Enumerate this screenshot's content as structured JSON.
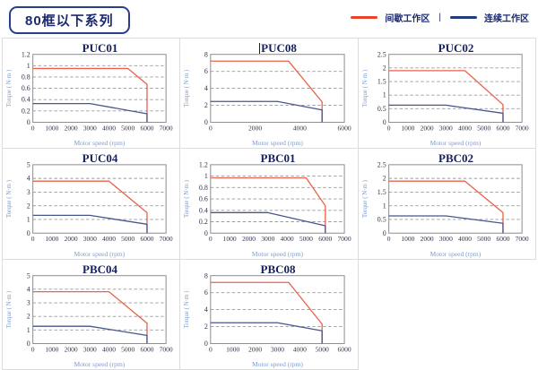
{
  "header": {
    "series_title": "80框以下系列",
    "legend": {
      "intermittent_label": "间歇工作区",
      "continuous_label": "连续工作区",
      "separator": "|",
      "intermittent_color": "#e8432a",
      "continuous_color": "#1f3d7d"
    }
  },
  "colors": {
    "chart_red": "#e9604b",
    "chart_blue": "#47568e",
    "grid": "#9a9a9a",
    "frame": "#8c8c8c",
    "title_text": "#16205c",
    "tick_text": "#33334d",
    "axis_label": "#7b9cd0",
    "cell_border": "#dcdcdc"
  },
  "chart_data": [
    {
      "type": "line",
      "title": "PUC01",
      "xlabel": "Motor speed (rpm)",
      "ylabel": "Torque ( N·m )",
      "xlim": [
        0,
        7000
      ],
      "ylim": [
        0,
        1.2
      ],
      "xticks": [
        0,
        1000,
        2000,
        3000,
        4000,
        5000,
        6000,
        7000
      ],
      "yticks": [
        0,
        0.2,
        0.4,
        0.6,
        0.8,
        1,
        1.2
      ],
      "grid": "horizontal-dashed",
      "legend_position": "none",
      "series": [
        {
          "name": "间歇工作区",
          "color": "#e9604b",
          "points": [
            [
              0,
              0.95
            ],
            [
              5000,
              0.95
            ],
            [
              6000,
              0.67
            ],
            [
              6000,
              0
            ]
          ]
        },
        {
          "name": "连续工作区",
          "color": "#47568e",
          "points": [
            [
              0,
              0.33
            ],
            [
              3000,
              0.33
            ],
            [
              6000,
              0.15
            ],
            [
              6000,
              0
            ]
          ]
        }
      ]
    },
    {
      "type": "line",
      "title": "PUC08",
      "xlabel": "Motor speed (rpm)",
      "ylabel": "Torque ( N·m )",
      "xlim": [
        0,
        6000
      ],
      "ylim": [
        0,
        8
      ],
      "xticks": [
        0,
        2000,
        4000,
        6000
      ],
      "yticks": [
        0,
        2,
        4,
        6,
        8
      ],
      "grid": "horizontal-dashed",
      "legend_position": "none",
      "series": [
        {
          "name": "间歇工作区",
          "color": "#e9604b",
          "points": [
            [
              0,
              7.2
            ],
            [
              3500,
              7.2
            ],
            [
              5000,
              2.4
            ],
            [
              5000,
              0
            ]
          ]
        },
        {
          "name": "连续工作区",
          "color": "#47568e",
          "points": [
            [
              0,
              2.45
            ],
            [
              3000,
              2.45
            ],
            [
              5000,
              1.45
            ],
            [
              5000,
              0
            ]
          ]
        }
      ]
    },
    {
      "type": "line",
      "title": "PUC02",
      "xlabel": "Motor speed (rpm)",
      "ylabel": "Torque ( N·m )",
      "xlim": [
        0,
        7000
      ],
      "ylim": [
        0,
        2.5
      ],
      "xticks": [
        0,
        1000,
        2000,
        3000,
        4000,
        5000,
        6000,
        7000
      ],
      "yticks": [
        0,
        0.5,
        1,
        1.5,
        2,
        2.5
      ],
      "grid": "horizontal-dashed",
      "legend_position": "none",
      "series": [
        {
          "name": "间歇工作区",
          "color": "#e9604b",
          "points": [
            [
              0,
              1.9
            ],
            [
              4000,
              1.9
            ],
            [
              6000,
              0.65
            ],
            [
              6000,
              0
            ]
          ]
        },
        {
          "name": "连续工作区",
          "color": "#47568e",
          "points": [
            [
              0,
              0.63
            ],
            [
              3000,
              0.63
            ],
            [
              6000,
              0.33
            ],
            [
              6000,
              0
            ]
          ]
        }
      ]
    },
    {
      "type": "line",
      "title": "PUC04",
      "xlabel": "Motor speed (rpm)",
      "ylabel": "Torque ( N·m )",
      "xlim": [
        0,
        7000
      ],
      "ylim": [
        0,
        5
      ],
      "xticks": [
        0,
        1000,
        2000,
        3000,
        4000,
        5000,
        6000,
        7000
      ],
      "yticks": [
        0,
        1,
        2,
        3,
        4,
        5
      ],
      "grid": "horizontal-dashed",
      "legend_position": "none",
      "series": [
        {
          "name": "间歇工作区",
          "color": "#e9604b",
          "points": [
            [
              0,
              3.8
            ],
            [
              4000,
              3.8
            ],
            [
              6000,
              1.5
            ],
            [
              6000,
              0
            ]
          ]
        },
        {
          "name": "连续工作区",
          "color": "#47568e",
          "points": [
            [
              0,
              1.3
            ],
            [
              3000,
              1.3
            ],
            [
              6000,
              0.65
            ],
            [
              6000,
              0
            ]
          ]
        }
      ]
    },
    {
      "type": "line",
      "title": "PBC01",
      "xlabel": "Motor speed (rpm)",
      "ylabel": "Torque ( N·m )",
      "xlim": [
        0,
        7000
      ],
      "ylim": [
        0,
        1.2
      ],
      "xticks": [
        0,
        1000,
        2000,
        3000,
        4000,
        5000,
        6000,
        7000
      ],
      "yticks": [
        0,
        0.2,
        0.4,
        0.6,
        0.8,
        1,
        1.2
      ],
      "grid": "horizontal-dashed",
      "legend_position": "none",
      "series": [
        {
          "name": "间歇工作区",
          "color": "#e9604b",
          "points": [
            [
              0,
              0.97
            ],
            [
              5000,
              0.97
            ],
            [
              6000,
              0.48
            ],
            [
              6000,
              0
            ]
          ]
        },
        {
          "name": "连续工作区",
          "color": "#47568e",
          "points": [
            [
              0,
              0.36
            ],
            [
              3000,
              0.36
            ],
            [
              6000,
              0.13
            ],
            [
              6000,
              0
            ]
          ]
        }
      ]
    },
    {
      "type": "line",
      "title": "PBC02",
      "xlabel": "Motor speed (rpm)",
      "ylabel": "Torque ( N·m )",
      "xlim": [
        0,
        7000
      ],
      "ylim": [
        0,
        2.5
      ],
      "xticks": [
        0,
        1000,
        2000,
        3000,
        4000,
        5000,
        6000,
        7000
      ],
      "yticks": [
        0,
        0.5,
        1,
        1.5,
        2,
        2.5
      ],
      "grid": "horizontal-dashed",
      "legend_position": "none",
      "series": [
        {
          "name": "间歇工作区",
          "color": "#e9604b",
          "points": [
            [
              0,
              1.9
            ],
            [
              4000,
              1.9
            ],
            [
              6000,
              0.75
            ],
            [
              6000,
              0
            ]
          ]
        },
        {
          "name": "连续工作区",
          "color": "#47568e",
          "points": [
            [
              0,
              0.63
            ],
            [
              3000,
              0.63
            ],
            [
              6000,
              0.36
            ],
            [
              6000,
              0
            ]
          ]
        }
      ]
    },
    {
      "type": "line",
      "title": "PBC04",
      "xlabel": "Motor speed (rpm)",
      "ylabel": "Torque ( N·m )",
      "xlim": [
        0,
        7000
      ],
      "ylim": [
        0,
        5
      ],
      "xticks": [
        0,
        1000,
        2000,
        3000,
        4000,
        5000,
        6000,
        7000
      ],
      "yticks": [
        0,
        1,
        2,
        3,
        4,
        5
      ],
      "grid": "horizontal-dashed",
      "legend_position": "none",
      "series": [
        {
          "name": "间歇工作区",
          "color": "#e9604b",
          "points": [
            [
              0,
              3.82
            ],
            [
              4000,
              3.82
            ],
            [
              6000,
              1.5
            ],
            [
              6000,
              0
            ]
          ]
        },
        {
          "name": "连续工作区",
          "color": "#47568e",
          "points": [
            [
              0,
              1.27
            ],
            [
              3000,
              1.27
            ],
            [
              6000,
              0.6
            ],
            [
              6000,
              0
            ]
          ]
        }
      ]
    },
    {
      "type": "line",
      "title": "PBC08",
      "xlabel": "Motor speed (rpm)",
      "ylabel": "Torque ( N·m )",
      "xlim": [
        0,
        6000
      ],
      "ylim": [
        0,
        8
      ],
      "xticks": [
        0,
        1000,
        2000,
        3000,
        4000,
        5000,
        6000
      ],
      "yticks": [
        0,
        2,
        4,
        6,
        8
      ],
      "grid": "horizontal-dashed",
      "legend_position": "none",
      "series": [
        {
          "name": "间歇工作区",
          "color": "#e9604b",
          "points": [
            [
              0,
              7.2
            ],
            [
              3500,
              7.2
            ],
            [
              5000,
              2.3
            ],
            [
              5000,
              0
            ]
          ]
        },
        {
          "name": "连续工作区",
          "color": "#47568e",
          "points": [
            [
              0,
              2.45
            ],
            [
              3000,
              2.45
            ],
            [
              5000,
              1.5
            ],
            [
              5000,
              0
            ]
          ]
        }
      ]
    }
  ]
}
